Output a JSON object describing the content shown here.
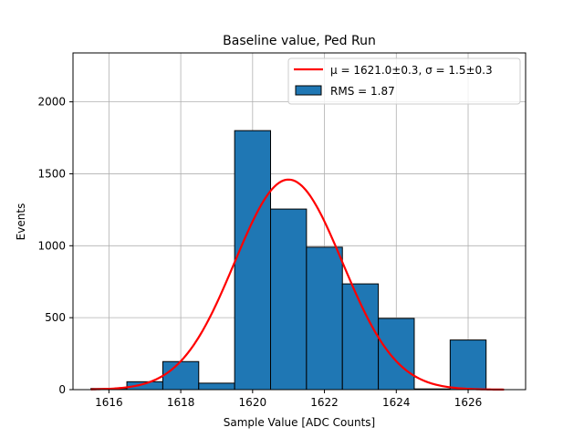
{
  "chart_data": {
    "type": "bar",
    "title": "Baseline value, Ped Run",
    "xlabel": "Sample Value [ADC Counts]",
    "ylabel": "Events",
    "xlim": [
      1615.0,
      1627.6
    ],
    "ylim": [
      0,
      2340
    ],
    "grid": true,
    "legend_position": "top-right",
    "x_ticks": [
      1616,
      1618,
      1620,
      1622,
      1624,
      1626
    ],
    "y_ticks": [
      0,
      500,
      1000,
      1500,
      2000
    ],
    "bins": [
      {
        "left": 1615.5,
        "right": 1616.5,
        "count": 8
      },
      {
        "left": 1616.5,
        "right": 1617.5,
        "count": 55
      },
      {
        "left": 1617.5,
        "right": 1618.5,
        "count": 195
      },
      {
        "left": 1618.5,
        "right": 1619.5,
        "count": 45
      },
      {
        "left": 1619.5,
        "right": 1620.5,
        "count": 1800
      },
      {
        "left": 1620.5,
        "right": 1621.5,
        "count": 1255
      },
      {
        "left": 1621.5,
        "right": 1622.5,
        "count": 990
      },
      {
        "left": 1622.5,
        "right": 1623.5,
        "count": 735
      },
      {
        "left": 1623.5,
        "right": 1624.5,
        "count": 495
      },
      {
        "left": 1624.5,
        "right": 1625.5,
        "count": 5
      },
      {
        "left": 1625.5,
        "right": 1626.5,
        "count": 345
      }
    ],
    "fit": {
      "function": "gaussian",
      "mu": 1621.0,
      "sigma": 1.5,
      "amplitude": 1460,
      "x_range": [
        1615.5,
        1627.0
      ]
    },
    "series": [
      {
        "name": "fit",
        "label": "μ = 1621.0±0.3, σ = 1.5±0.3",
        "color": "#ff0000"
      },
      {
        "name": "hist",
        "label": "RMS = 1.87",
        "color": "#1f77b4"
      }
    ]
  }
}
